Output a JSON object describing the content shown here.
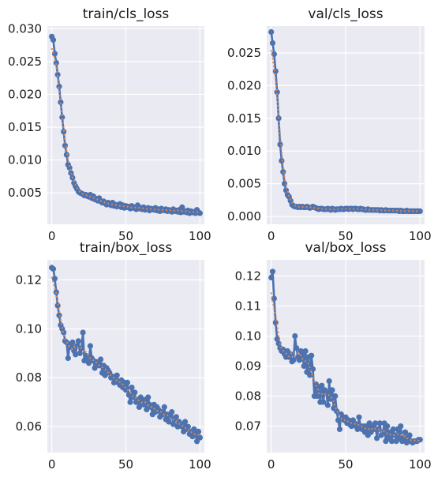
{
  "chart_data": [
    {
      "type": "line",
      "title": "train/cls_loss",
      "xlim": [
        -3,
        103
      ],
      "ylim": [
        0.0002,
        0.0304
      ],
      "xticks": [
        "0",
        "50",
        "100"
      ],
      "yticks": [
        "0.005",
        "0.010",
        "0.015",
        "0.020",
        "0.025",
        "0.030"
      ],
      "grid": true,
      "series": [
        {
          "x": [
            0,
            1,
            2,
            3,
            4,
            5,
            6,
            7,
            8,
            9,
            10,
            11,
            12,
            13,
            14,
            15,
            16,
            17,
            18,
            19,
            20,
            21,
            22,
            23,
            24,
            25,
            26,
            27,
            28,
            29,
            30,
            31,
            32,
            33,
            34,
            35,
            36,
            37,
            38,
            39,
            40,
            41,
            42,
            43,
            44,
            45,
            46,
            47,
            48,
            49,
            50,
            51,
            52,
            53,
            54,
            55,
            56,
            57,
            58,
            59,
            60,
            61,
            62,
            63,
            64,
            65,
            66,
            67,
            68,
            69,
            70,
            71,
            72,
            73,
            74,
            75,
            76,
            77,
            78,
            79,
            80,
            81,
            82,
            83,
            84,
            85,
            86,
            87,
            88,
            89,
            90,
            91,
            92,
            93,
            94,
            95,
            96,
            97,
            98,
            99,
            100
          ],
          "y": [
            0.0288,
            0.0283,
            0.0262,
            0.0248,
            0.023,
            0.0212,
            0.0188,
            0.0165,
            0.0143,
            0.0122,
            0.0108,
            0.0093,
            0.0088,
            0.008,
            0.0073,
            0.0065,
            0.006,
            0.0056,
            0.0052,
            0.005,
            0.0049,
            0.0048,
            0.0046,
            0.0047,
            0.0045,
            0.0044,
            0.0047,
            0.0042,
            0.0045,
            0.004,
            0.0041,
            0.0038,
            0.0042,
            0.0037,
            0.0035,
            0.0037,
            0.0034,
            0.0032,
            0.0035,
            0.0033,
            0.0031,
            0.0035,
            0.003,
            0.0032,
            0.0029,
            0.003,
            0.0033,
            0.0028,
            0.0031,
            0.0027,
            0.003,
            0.0028,
            0.0029,
            0.0026,
            0.003,
            0.0027,
            0.0028,
            0.0025,
            0.0031,
            0.0026,
            0.0027,
            0.0025,
            0.0028,
            0.0024,
            0.0026,
            0.0027,
            0.0023,
            0.0026,
            0.0025,
            0.0024,
            0.0027,
            0.0023,
            0.0025,
            0.0022,
            0.0026,
            0.0024,
            0.0023,
            0.0025,
            0.0022,
            0.0024,
            0.0023,
            0.0021,
            0.0025,
            0.0022,
            0.0023,
            0.0021,
            0.0024,
            0.002,
            0.0028,
            0.0021,
            0.0022,
            0.002,
            0.0023,
            0.0019,
            0.0022,
            0.002,
            0.0021,
            0.0019,
            0.0024,
            0.002,
            0.0019
          ]
        }
      ]
    },
    {
      "type": "line",
      "title": "val/cls_loss",
      "xlim": [
        -3,
        103
      ],
      "ylim": [
        -0.0012,
        0.0291
      ],
      "xticks": [
        "0",
        "50",
        "100"
      ],
      "yticks": [
        "0.000",
        "0.005",
        "0.010",
        "0.015",
        "0.020",
        "0.025"
      ],
      "grid": true,
      "series": [
        {
          "x": [
            0,
            1,
            2,
            3,
            4,
            5,
            6,
            7,
            8,
            9,
            10,
            11,
            12,
            13,
            14,
            15,
            16,
            17,
            18,
            19,
            20,
            21,
            22,
            23,
            24,
            25,
            26,
            27,
            28,
            29,
            30,
            31,
            32,
            33,
            34,
            35,
            36,
            37,
            38,
            39,
            40,
            41,
            42,
            43,
            44,
            45,
            46,
            47,
            48,
            49,
            50,
            51,
            52,
            53,
            54,
            55,
            56,
            57,
            58,
            59,
            60,
            61,
            62,
            63,
            64,
            65,
            66,
            67,
            68,
            69,
            70,
            71,
            72,
            73,
            74,
            75,
            76,
            77,
            78,
            79,
            80,
            81,
            82,
            83,
            84,
            85,
            86,
            87,
            88,
            89,
            90,
            91,
            92,
            93,
            94,
            95,
            96,
            97,
            98,
            99,
            100
          ],
          "y": [
            0.0282,
            0.0265,
            0.0248,
            0.0222,
            0.019,
            0.015,
            0.011,
            0.0085,
            0.0068,
            0.005,
            0.004,
            0.0033,
            0.003,
            0.0024,
            0.0018,
            0.0016,
            0.0015,
            0.0015,
            0.0014,
            0.0015,
            0.0014,
            0.0015,
            0.0014,
            0.0014,
            0.0015,
            0.0014,
            0.0013,
            0.0014,
            0.0015,
            0.0014,
            0.0013,
            0.0012,
            0.0011,
            0.0012,
            0.0012,
            0.0011,
            0.0011,
            0.0011,
            0.0012,
            0.0011,
            0.001,
            0.0012,
            0.0011,
            0.001,
            0.0011,
            0.0011,
            0.0011,
            0.0012,
            0.0011,
            0.0011,
            0.0012,
            0.0012,
            0.0011,
            0.0012,
            0.0012,
            0.0011,
            0.0012,
            0.0012,
            0.0011,
            0.0011,
            0.0012,
            0.0011,
            0.0011,
            0.001,
            0.001,
            0.0011,
            0.001,
            0.001,
            0.001,
            0.001,
            0.001,
            0.001,
            0.001,
            0.0009,
            0.001,
            0.0009,
            0.0009,
            0.001,
            0.0009,
            0.0009,
            0.0009,
            0.0009,
            0.0009,
            0.0009,
            0.0009,
            0.0009,
            0.0008,
            0.0009,
            0.0008,
            0.0008,
            0.0008,
            0.0009,
            0.0008,
            0.0008,
            0.0008,
            0.0008,
            0.0008,
            0.0008,
            0.0008,
            0.0008,
            0.0008
          ]
        }
      ]
    },
    {
      "type": "line",
      "title": "train/box_loss",
      "xlim": [
        -3,
        103
      ],
      "ylim": [
        0.0494,
        0.1282
      ],
      "xticks": [
        "0",
        "50",
        "100"
      ],
      "yticks": [
        "0.06",
        "0.08",
        "0.10",
        "0.12"
      ],
      "grid": true,
      "series": [
        {
          "x": [
            0,
            1,
            2,
            3,
            4,
            5,
            6,
            7,
            8,
            9,
            10,
            11,
            12,
            13,
            14,
            15,
            16,
            17,
            18,
            19,
            20,
            21,
            22,
            23,
            24,
            25,
            26,
            27,
            28,
            29,
            30,
            31,
            32,
            33,
            34,
            35,
            36,
            37,
            38,
            39,
            40,
            41,
            42,
            43,
            44,
            45,
            46,
            47,
            48,
            49,
            50,
            51,
            52,
            53,
            54,
            55,
            56,
            57,
            58,
            59,
            60,
            61,
            62,
            63,
            64,
            65,
            66,
            67,
            68,
            69,
            70,
            71,
            72,
            73,
            74,
            75,
            76,
            77,
            78,
            79,
            80,
            81,
            82,
            83,
            84,
            85,
            86,
            87,
            88,
            89,
            90,
            91,
            92,
            93,
            94,
            95,
            96,
            97,
            98,
            99,
            100
          ],
          "y": [
            0.125,
            0.1245,
            0.1205,
            0.115,
            0.1095,
            0.1055,
            0.1015,
            0.1,
            0.0985,
            0.095,
            0.0945,
            0.088,
            0.0935,
            0.0925,
            0.0945,
            0.091,
            0.0895,
            0.093,
            0.095,
            0.09,
            0.092,
            0.0985,
            0.087,
            0.089,
            0.0885,
            0.086,
            0.093,
            0.088,
            0.087,
            0.084,
            0.0865,
            0.0855,
            0.085,
            0.0875,
            0.082,
            0.085,
            0.081,
            0.084,
            0.083,
            0.082,
            0.08,
            0.0805,
            0.078,
            0.079,
            0.081,
            0.078,
            0.077,
            0.079,
            0.076,
            0.078,
            0.075,
            0.078,
            0.073,
            0.07,
            0.076,
            0.072,
            0.074,
            0.07,
            0.071,
            0.068,
            0.072,
            0.07,
            0.069,
            0.071,
            0.067,
            0.072,
            0.069,
            0.068,
            0.065,
            0.069,
            0.066,
            0.068,
            0.067,
            0.064,
            0.066,
            0.065,
            0.068,
            0.063,
            0.065,
            0.062,
            0.064,
            0.066,
            0.061,
            0.063,
            0.064,
            0.06,
            0.062,
            0.061,
            0.06,
            0.058,
            0.062,
            0.059,
            0.06,
            0.057,
            0.058,
            0.056,
            0.059,
            0.057,
            0.054,
            0.058,
            0.0555
          ]
        }
      ]
    },
    {
      "type": "line",
      "title": "val/box_loss",
      "xlim": [
        -3,
        103
      ],
      "ylim": [
        0.0612,
        0.1254
      ],
      "xticks": [
        "0",
        "50",
        "100"
      ],
      "yticks": [
        "0.07",
        "0.08",
        "0.09",
        "0.10",
        "0.11",
        "0.12"
      ],
      "grid": true,
      "series": [
        {
          "x": [
            0,
            1,
            2,
            3,
            4,
            5,
            6,
            7,
            8,
            9,
            10,
            11,
            12,
            13,
            14,
            15,
            16,
            17,
            18,
            19,
            20,
            21,
            22,
            23,
            24,
            25,
            26,
            27,
            28,
            29,
            30,
            31,
            32,
            33,
            34,
            35,
            36,
            37,
            38,
            39,
            40,
            41,
            42,
            43,
            44,
            45,
            46,
            47,
            48,
            49,
            50,
            51,
            52,
            53,
            54,
            55,
            56,
            57,
            58,
            59,
            60,
            61,
            62,
            63,
            64,
            65,
            66,
            67,
            68,
            69,
            70,
            71,
            72,
            73,
            74,
            75,
            76,
            77,
            78,
            79,
            80,
            81,
            82,
            83,
            84,
            85,
            86,
            87,
            88,
            89,
            90,
            91,
            92,
            93,
            94,
            95,
            96,
            97,
            98,
            99,
            100
          ],
          "y": [
            0.1195,
            0.1215,
            0.1125,
            0.1045,
            0.099,
            0.0975,
            0.096,
            0.095,
            0.0955,
            0.094,
            0.093,
            0.095,
            0.093,
            0.094,
            0.0915,
            0.092,
            0.1,
            0.096,
            0.093,
            0.092,
            0.095,
            0.0935,
            0.09,
            0.095,
            0.088,
            0.093,
            0.087,
            0.0935,
            0.089,
            0.08,
            0.084,
            0.08,
            0.083,
            0.078,
            0.0835,
            0.078,
            0.082,
            0.081,
            0.077,
            0.085,
            0.079,
            0.082,
            0.076,
            0.08,
            0.075,
            0.072,
            0.069,
            0.074,
            0.073,
            0.072,
            0.073,
            0.071,
            0.072,
            0.0705,
            0.07,
            0.072,
            0.071,
            0.07,
            0.069,
            0.073,
            0.07,
            0.069,
            0.07,
            0.068,
            0.07,
            0.067,
            0.071,
            0.068,
            0.07,
            0.069,
            0.071,
            0.066,
            0.069,
            0.071,
            0.067,
            0.068,
            0.071,
            0.065,
            0.07,
            0.066,
            0.068,
            0.065,
            0.069,
            0.067,
            0.065,
            0.069,
            0.066,
            0.07,
            0.065,
            0.066,
            0.068,
            0.0645,
            0.066,
            0.067,
            0.065,
            0.0645,
            0.065,
            0.065,
            0.065,
            0.0655,
            0.0655
          ]
        }
      ]
    }
  ],
  "colors": {
    "panel_bg": "#eaeaf2",
    "grid": "#ffffff",
    "line": "#4c72b0",
    "smooth": "#dd8452",
    "text": "#1a1a1a"
  }
}
